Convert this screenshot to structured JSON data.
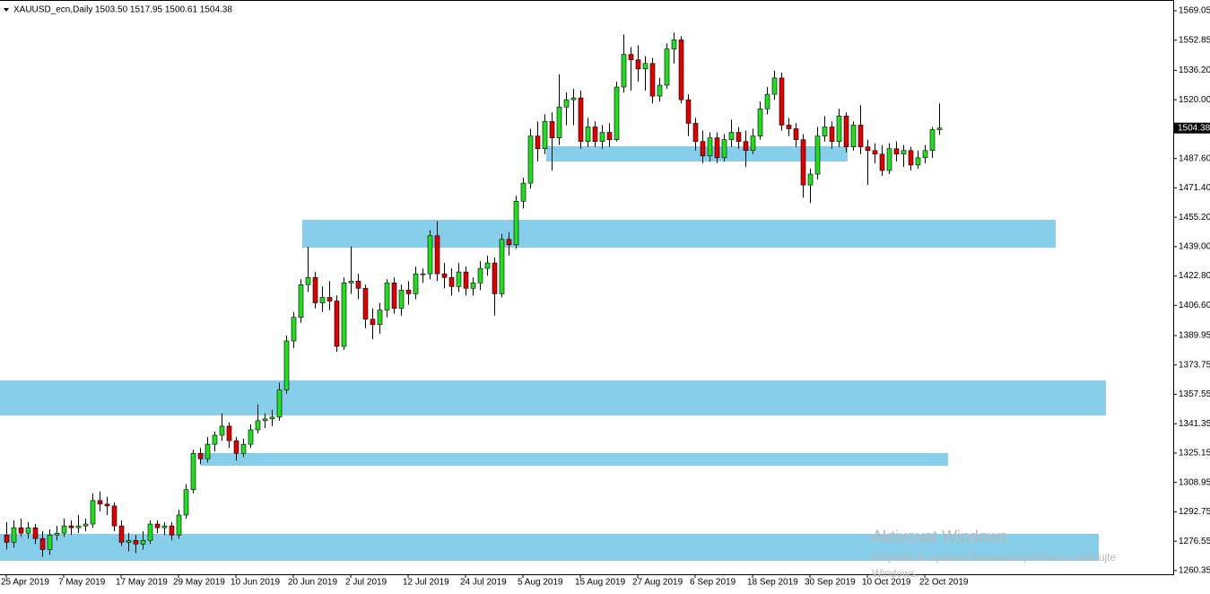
{
  "chart_data": {
    "type": "candlestick",
    "title": "XAUUSD_ecn,Daily",
    "ohlc_label": "1503.50 1517.95 1500.61 1504.38",
    "categories": [
      "25 Apr 2019",
      null,
      null,
      null,
      null,
      null,
      null,
      null,
      "7 May 2019",
      null,
      null,
      null,
      null,
      null,
      null,
      null,
      "17 May 2019",
      null,
      null,
      null,
      null,
      null,
      null,
      null,
      "29 May 2019",
      null,
      null,
      null,
      null,
      null,
      null,
      null,
      "10 Jun 2019",
      null,
      null,
      null,
      null,
      null,
      null,
      null,
      "20 Jun 2019",
      null,
      null,
      null,
      null,
      null,
      null,
      null,
      "2 Jul 2019",
      null,
      null,
      null,
      null,
      null,
      null,
      null,
      "12 Jul 2019",
      null,
      null,
      null,
      null,
      null,
      null,
      null,
      "24 Jul 2019",
      null,
      null,
      null,
      null,
      null,
      null,
      null,
      "5 Aug 2019",
      null,
      null,
      null,
      null,
      null,
      null,
      null,
      "15 Aug 2019",
      null,
      null,
      null,
      null,
      null,
      null,
      null,
      "27 Aug 2019",
      null,
      null,
      null,
      null,
      null,
      null,
      null,
      "6 Sep 2019",
      null,
      null,
      null,
      null,
      null,
      null,
      null,
      "18 Sep 2019",
      null,
      null,
      null,
      null,
      null,
      null,
      null,
      "30 Sep 2019",
      null,
      null,
      null,
      null,
      null,
      null,
      null,
      "10 Oct 2019",
      null,
      null,
      null,
      null,
      null,
      null,
      null,
      "22 Oct 2019",
      null,
      null
    ],
    "open": [
      1280,
      1276,
      1284,
      1281,
      1284,
      1278,
      1272,
      1280,
      1281,
      1285,
      1284,
      1285,
      1286,
      1299,
      1297,
      1296,
      1285,
      1276,
      1277,
      1275,
      1277,
      1286,
      1284,
      1285,
      1280,
      1291,
      1305,
      1325,
      1322,
      1330,
      1335,
      1340,
      1332,
      1325,
      1330,
      1338,
      1343,
      1344,
      1345,
      1360,
      1387,
      1400,
      1418,
      1422,
      1408,
      1411,
      1409,
      1384,
      1419,
      1420,
      1416,
      1399,
      1396,
      1404,
      1419,
      1405,
      1415,
      1413,
      1424,
      1424,
      1445,
      1424,
      1422,
      1417,
      1425,
      1416,
      1419,
      1427,
      1430,
      1413,
      1443,
      1440,
      1464,
      1474,
      1500,
      1493,
      1508,
      1499,
      1516,
      1520,
      1521,
      1497,
      1505,
      1497,
      1502,
      1498,
      1527,
      1545,
      1542,
      1537,
      1540,
      1522,
      1528,
      1548,
      1553,
      1520,
      1507,
      1497,
      1489,
      1499,
      1488,
      1498,
      1502,
      1497,
      1492,
      1500,
      1515,
      1523,
      1532,
      1506,
      1504,
      1498,
      1473,
      1479,
      1500,
      1505,
      1497,
      1511,
      1494,
      1506,
      1494,
      1492,
      1490,
      1481,
      1493,
      1490,
      1492,
      1484,
      1488,
      1492,
      1503.5
    ],
    "high": [
      1287,
      1288,
      1289,
      1287,
      1286,
      1282,
      1283,
      1285,
      1289,
      1288,
      1291,
      1289,
      1303,
      1304,
      1301,
      1298,
      1288,
      1281,
      1280,
      1282,
      1288,
      1288,
      1287,
      1287,
      1294,
      1308,
      1327,
      1328,
      1334,
      1337,
      1347,
      1342,
      1334,
      1333,
      1341,
      1352,
      1347,
      1349,
      1364,
      1390,
      1403,
      1421,
      1439,
      1425,
      1417,
      1420,
      1412,
      1422,
      1439,
      1424,
      1418,
      1405,
      1408,
      1421,
      1422,
      1418,
      1420,
      1428,
      1427,
      1448,
      1453,
      1430,
      1427,
      1430,
      1428,
      1422,
      1431,
      1434,
      1433,
      1446,
      1447,
      1467,
      1477,
      1504,
      1508,
      1512,
      1513,
      1534,
      1524,
      1526,
      1525,
      1510,
      1508,
      1506,
      1507,
      1530,
      1556,
      1549,
      1550,
      1544,
      1543,
      1532,
      1551,
      1557,
      1555,
      1523,
      1510,
      1503,
      1502,
      1502,
      1501,
      1509,
      1505,
      1503,
      1504,
      1519,
      1527,
      1536,
      1535,
      1510,
      1507,
      1501,
      1482,
      1505,
      1511,
      1508,
      1515,
      1513,
      1508,
      1517,
      1498,
      1496,
      1495,
      1496,
      1497,
      1495,
      1494,
      1492,
      1495,
      1505,
      1517.95
    ],
    "low": [
      1272,
      1273,
      1279,
      1278,
      1275,
      1268,
      1269,
      1277,
      1279,
      1280,
      1281,
      1282,
      1284,
      1293,
      1291,
      1282,
      1274,
      1271,
      1270,
      1272,
      1275,
      1281,
      1280,
      1277,
      1278,
      1289,
      1303,
      1319,
      1320,
      1326,
      1332,
      1328,
      1321,
      1323,
      1328,
      1336,
      1339,
      1340,
      1343,
      1358,
      1383,
      1397,
      1414,
      1405,
      1403,
      1404,
      1381,
      1382,
      1413,
      1410,
      1394,
      1388,
      1391,
      1400,
      1402,
      1401,
      1407,
      1410,
      1419,
      1421,
      1420,
      1416,
      1412,
      1414,
      1412,
      1412,
      1415,
      1423,
      1401,
      1411,
      1434,
      1438,
      1460,
      1471,
      1486,
      1490,
      1481,
      1495,
      1506,
      1506,
      1493,
      1494,
      1494,
      1493,
      1494,
      1497,
      1524,
      1525,
      1530,
      1525,
      1518,
      1519,
      1526,
      1540,
      1518,
      1500,
      1492,
      1485,
      1486,
      1485,
      1486,
      1494,
      1493,
      1483,
      1490,
      1498,
      1512,
      1520,
      1503,
      1500,
      1494,
      1466,
      1463,
      1476,
      1497,
      1493,
      1494,
      1491,
      1492,
      1490,
      1473,
      1485,
      1478,
      1479,
      1486,
      1483,
      1481,
      1482,
      1485,
      1488,
      1500.61
    ],
    "close": [
      1276,
      1284,
      1281,
      1284,
      1278,
      1272,
      1280,
      1281,
      1285,
      1284,
      1285,
      1286,
      1299,
      1297,
      1296,
      1285,
      1276,
      1277,
      1275,
      1277,
      1286,
      1284,
      1285,
      1280,
      1291,
      1305,
      1325,
      1322,
      1330,
      1335,
      1340,
      1332,
      1325,
      1330,
      1338,
      1343,
      1344,
      1345,
      1360,
      1387,
      1400,
      1418,
      1422,
      1408,
      1411,
      1409,
      1384,
      1419,
      1420,
      1416,
      1399,
      1396,
      1404,
      1419,
      1405,
      1415,
      1413,
      1424,
      1424,
      1445,
      1424,
      1422,
      1417,
      1425,
      1416,
      1419,
      1427,
      1430,
      1413,
      1443,
      1440,
      1464,
      1474,
      1500,
      1493,
      1508,
      1499,
      1516,
      1520,
      1521,
      1497,
      1505,
      1497,
      1502,
      1498,
      1527,
      1545,
      1542,
      1537,
      1540,
      1522,
      1528,
      1548,
      1553,
      1520,
      1507,
      1497,
      1489,
      1499,
      1488,
      1498,
      1502,
      1497,
      1492,
      1500,
      1515,
      1523,
      1532,
      1506,
      1504,
      1498,
      1473,
      1479,
      1500,
      1505,
      1497,
      1511,
      1494,
      1506,
      1494,
      1492,
      1490,
      1481,
      1493,
      1490,
      1492,
      1484,
      1488,
      1492,
      1503.5,
      1504.38
    ],
    "ylim": [
      1258.33,
      1575
    ],
    "yticks": [
      1569.05,
      1552.85,
      {
        "value": 1536.2,
        "label": "1536.20"
      },
      {
        "value": 1520,
        "label": "1520.00"
      },
      {
        "value": 1487.6,
        "label": "1487.60"
      },
      {
        "value": 1471.4,
        "label": "1471.40"
      },
      {
        "value": 1455.2,
        "label": "1455.20"
      },
      {
        "value": 1439,
        "label": "1439.00"
      },
      {
        "value": 1422.8,
        "label": "1422.80"
      },
      {
        "value": 1406.6,
        "label": "1406.60"
      },
      1389.95,
      1373.75,
      1357.55,
      1341.35,
      1325.15,
      1308.95,
      1292.75,
      1276.55,
      1260.35
    ],
    "last_price": 1504.38,
    "up_color": "#22dd22",
    "down_color": "#dd0000"
  },
  "watermark": {
    "title": "Aktivovat Windows",
    "lines": [
      "Prejdete do aplikace Nastavení počítače a aktivujte",
      "Windows."
    ]
  }
}
